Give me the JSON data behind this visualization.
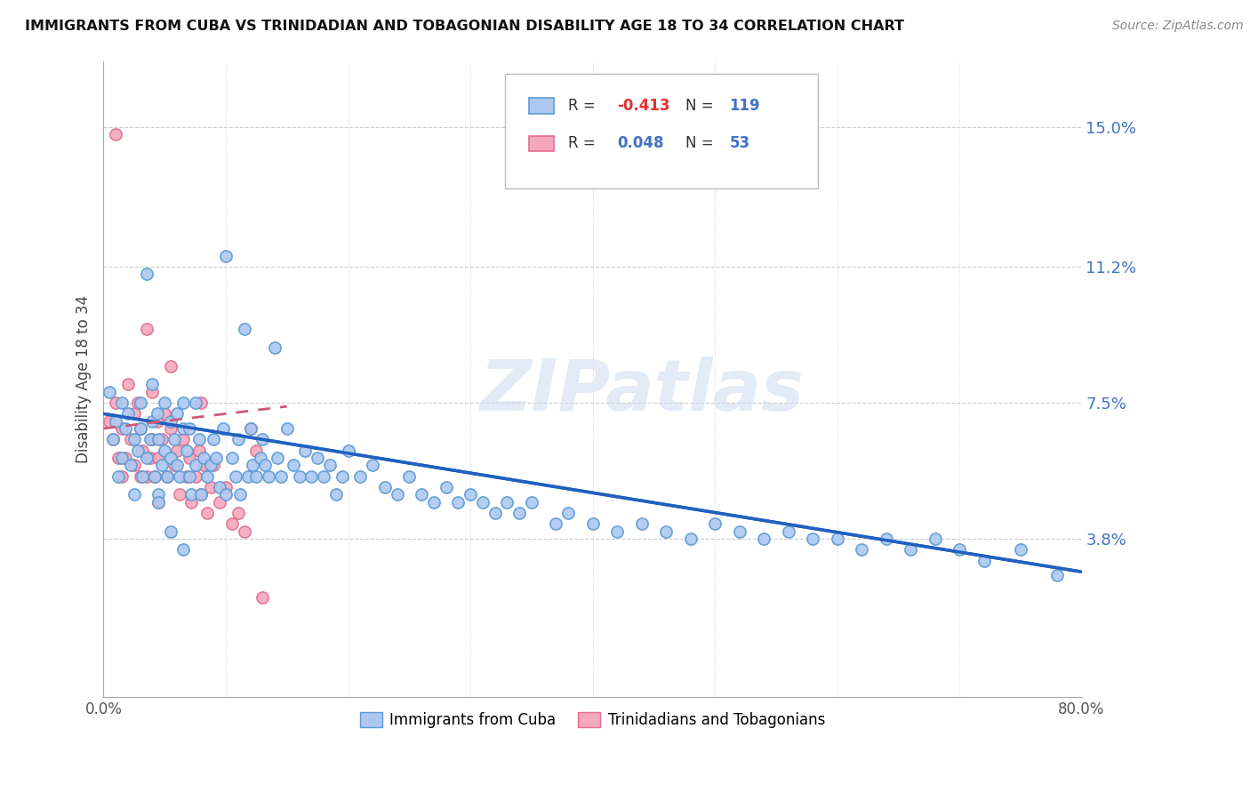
{
  "title": "IMMIGRANTS FROM CUBA VS TRINIDADIAN AND TOBAGONIAN DISABILITY AGE 18 TO 34 CORRELATION CHART",
  "source": "Source: ZipAtlas.com",
  "ylabel": "Disability Age 18 to 34",
  "xlim": [
    0.0,
    0.8
  ],
  "ylim": [
    -0.005,
    0.168
  ],
  "yticks": [
    0.038,
    0.075,
    0.112,
    0.15
  ],
  "ytick_labels": [
    "3.8%",
    "7.5%",
    "11.2%",
    "15.0%"
  ],
  "xticks": [
    0.0,
    0.1,
    0.2,
    0.3,
    0.4,
    0.5,
    0.6,
    0.7,
    0.8
  ],
  "xtick_labels": [
    "0.0%",
    "",
    "",
    "",
    "",
    "",
    "",
    "",
    "80.0%"
  ],
  "cuba_color": "#adc8f0",
  "trini_color": "#f5a8bc",
  "cuba_edge_color": "#5b9bd5",
  "trini_edge_color": "#e07090",
  "trend_cuba_color": "#2060c0",
  "trend_trini_color": "#d05878",
  "R_cuba": -0.413,
  "N_cuba": 119,
  "R_trini": 0.048,
  "N_trini": 53,
  "legend_label_cuba": "Immigrants from Cuba",
  "legend_label_trini": "Trinidadians and Tobagonians",
  "watermark": "ZIPatlas",
  "background_color": "#ffffff",
  "cuba_trend_x0": 0.0,
  "cuba_trend_y0": 0.072,
  "cuba_trend_x1": 0.8,
  "cuba_trend_y1": 0.029,
  "trini_trend_x0": 0.0,
  "trini_trend_y0": 0.068,
  "trini_trend_x1": 0.15,
  "trini_trend_y1": 0.074,
  "cuba_points_x": [
    0.005,
    0.008,
    0.01,
    0.012,
    0.015,
    0.015,
    0.018,
    0.02,
    0.022,
    0.025,
    0.025,
    0.028,
    0.03,
    0.03,
    0.032,
    0.035,
    0.035,
    0.038,
    0.04,
    0.04,
    0.042,
    0.044,
    0.045,
    0.045,
    0.048,
    0.05,
    0.05,
    0.052,
    0.055,
    0.055,
    0.058,
    0.06,
    0.06,
    0.062,
    0.065,
    0.065,
    0.068,
    0.07,
    0.07,
    0.072,
    0.075,
    0.075,
    0.078,
    0.08,
    0.082,
    0.085,
    0.088,
    0.09,
    0.092,
    0.095,
    0.098,
    0.1,
    0.1,
    0.105,
    0.108,
    0.11,
    0.112,
    0.115,
    0.118,
    0.12,
    0.122,
    0.125,
    0.128,
    0.13,
    0.132,
    0.135,
    0.14,
    0.142,
    0.145,
    0.15,
    0.155,
    0.16,
    0.165,
    0.17,
    0.175,
    0.18,
    0.185,
    0.19,
    0.195,
    0.2,
    0.21,
    0.22,
    0.23,
    0.24,
    0.25,
    0.26,
    0.27,
    0.28,
    0.29,
    0.3,
    0.31,
    0.32,
    0.33,
    0.34,
    0.35,
    0.37,
    0.38,
    0.4,
    0.42,
    0.44,
    0.46,
    0.48,
    0.5,
    0.52,
    0.54,
    0.56,
    0.58,
    0.6,
    0.62,
    0.64,
    0.66,
    0.68,
    0.7,
    0.72,
    0.75,
    0.78,
    0.045,
    0.055,
    0.065
  ],
  "cuba_points_y": [
    0.078,
    0.065,
    0.07,
    0.055,
    0.06,
    0.075,
    0.068,
    0.072,
    0.058,
    0.065,
    0.05,
    0.062,
    0.068,
    0.075,
    0.055,
    0.11,
    0.06,
    0.065,
    0.07,
    0.08,
    0.055,
    0.072,
    0.065,
    0.05,
    0.058,
    0.075,
    0.062,
    0.055,
    0.07,
    0.06,
    0.065,
    0.072,
    0.058,
    0.055,
    0.068,
    0.075,
    0.062,
    0.055,
    0.068,
    0.05,
    0.075,
    0.058,
    0.065,
    0.05,
    0.06,
    0.055,
    0.058,
    0.065,
    0.06,
    0.052,
    0.068,
    0.115,
    0.05,
    0.06,
    0.055,
    0.065,
    0.05,
    0.095,
    0.055,
    0.068,
    0.058,
    0.055,
    0.06,
    0.065,
    0.058,
    0.055,
    0.09,
    0.06,
    0.055,
    0.068,
    0.058,
    0.055,
    0.062,
    0.055,
    0.06,
    0.055,
    0.058,
    0.05,
    0.055,
    0.062,
    0.055,
    0.058,
    0.052,
    0.05,
    0.055,
    0.05,
    0.048,
    0.052,
    0.048,
    0.05,
    0.048,
    0.045,
    0.048,
    0.045,
    0.048,
    0.042,
    0.045,
    0.042,
    0.04,
    0.042,
    0.04,
    0.038,
    0.042,
    0.04,
    0.038,
    0.04,
    0.038,
    0.038,
    0.035,
    0.038,
    0.035,
    0.038,
    0.035,
    0.032,
    0.035,
    0.028,
    0.048,
    0.04,
    0.035
  ],
  "trini_points_x": [
    0.005,
    0.008,
    0.01,
    0.012,
    0.015,
    0.015,
    0.018,
    0.02,
    0.022,
    0.025,
    0.025,
    0.028,
    0.03,
    0.03,
    0.032,
    0.035,
    0.035,
    0.038,
    0.04,
    0.04,
    0.042,
    0.044,
    0.045,
    0.045,
    0.048,
    0.05,
    0.052,
    0.055,
    0.058,
    0.06,
    0.062,
    0.065,
    0.068,
    0.07,
    0.072,
    0.075,
    0.078,
    0.08,
    0.082,
    0.085,
    0.088,
    0.09,
    0.095,
    0.1,
    0.105,
    0.11,
    0.115,
    0.12,
    0.125,
    0.13,
    0.01,
    0.055,
    0.08
  ],
  "trini_points_y": [
    0.07,
    0.065,
    0.075,
    0.06,
    0.068,
    0.055,
    0.06,
    0.08,
    0.065,
    0.072,
    0.058,
    0.075,
    0.068,
    0.055,
    0.062,
    0.095,
    0.055,
    0.06,
    0.078,
    0.065,
    0.055,
    0.07,
    0.06,
    0.048,
    0.065,
    0.072,
    0.055,
    0.068,
    0.058,
    0.062,
    0.05,
    0.065,
    0.055,
    0.06,
    0.048,
    0.055,
    0.062,
    0.05,
    0.058,
    0.045,
    0.052,
    0.058,
    0.048,
    0.052,
    0.042,
    0.045,
    0.04,
    0.068,
    0.062,
    0.022,
    0.148,
    0.085,
    0.075
  ]
}
